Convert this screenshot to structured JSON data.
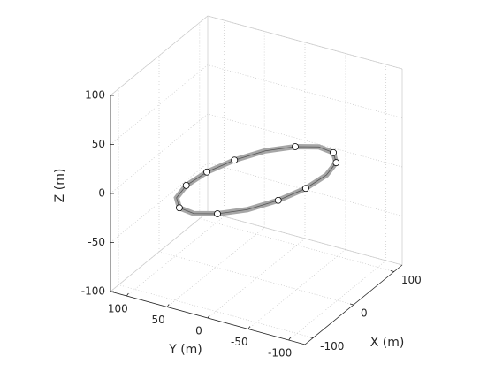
{
  "chart_data": {
    "type": "line3d",
    "xlabel": "X (m)",
    "ylabel": "Y (m)",
    "zlabel": "Z (m)",
    "xlim": [
      -120,
      120
    ],
    "ylim": [
      -120,
      120
    ],
    "zlim": [
      -100,
      100
    ],
    "xticks": [
      -100,
      0,
      100
    ],
    "yticks": [
      -100,
      -50,
      0,
      50,
      100
    ],
    "zticks": [
      -100,
      -50,
      0,
      50,
      100
    ],
    "grid": true,
    "series": [
      {
        "color": "#a6a6a6",
        "style": "line",
        "x": [
          89,
          110,
          114,
          100,
          72,
          32,
          -12,
          -55,
          -89,
          -110,
          -114,
          -100,
          -72,
          -32,
          12,
          55
        ],
        "y": [
          -54,
          -40,
          -20,
          2,
          25,
          43,
          55,
          59,
          54,
          40,
          20,
          -2,
          -25,
          -43,
          -55,
          -59
        ],
        "z": [
          0,
          0,
          0,
          0,
          0,
          0,
          0,
          0,
          0,
          0,
          0,
          0,
          0,
          0,
          0,
          0
        ]
      },
      {
        "color": "#ffffff",
        "style": "marker",
        "x": [
          89,
          110,
          100,
          32,
          -12,
          -55,
          -110,
          -100,
          -32,
          12
        ],
        "y": [
          -54,
          -40,
          2,
          43,
          55,
          59,
          40,
          -2,
          -43,
          -55
        ],
        "z": [
          0,
          0,
          0,
          0,
          0,
          0,
          0,
          0,
          0,
          0
        ]
      }
    ]
  }
}
